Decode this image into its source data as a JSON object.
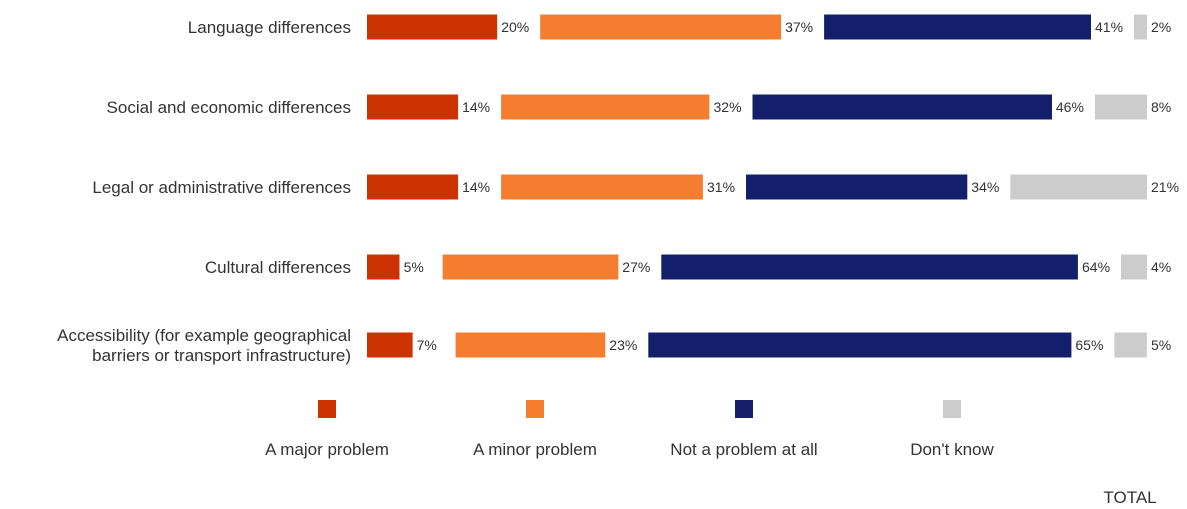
{
  "chart_data": {
    "type": "bar",
    "stacked": true,
    "orientation": "horizontal",
    "categories": [
      [
        "Language differences"
      ],
      [
        "Social and economic differences"
      ],
      [
        "Legal or administrative differences"
      ],
      [
        "Cultural differences"
      ],
      [
        "Accessibility (for example geographical",
        "barriers or transport infrastructure)"
      ]
    ],
    "series": [
      {
        "name": "A major problem",
        "color": "#cc3300",
        "values": [
          20,
          14,
          14,
          5,
          7
        ]
      },
      {
        "name": "A minor problem",
        "color": "#f47d30",
        "values": [
          37,
          32,
          31,
          27,
          23
        ]
      },
      {
        "name": "Not a problem at all",
        "color": "#141f6b",
        "values": [
          41,
          46,
          34,
          64,
          65
        ]
      },
      {
        "name": "Don't know",
        "color": "#cccccc",
        "values": [
          2,
          8,
          21,
          4,
          5
        ]
      }
    ],
    "value_suffix": "%",
    "legend_position": "bottom",
    "footer": "TOTAL"
  }
}
